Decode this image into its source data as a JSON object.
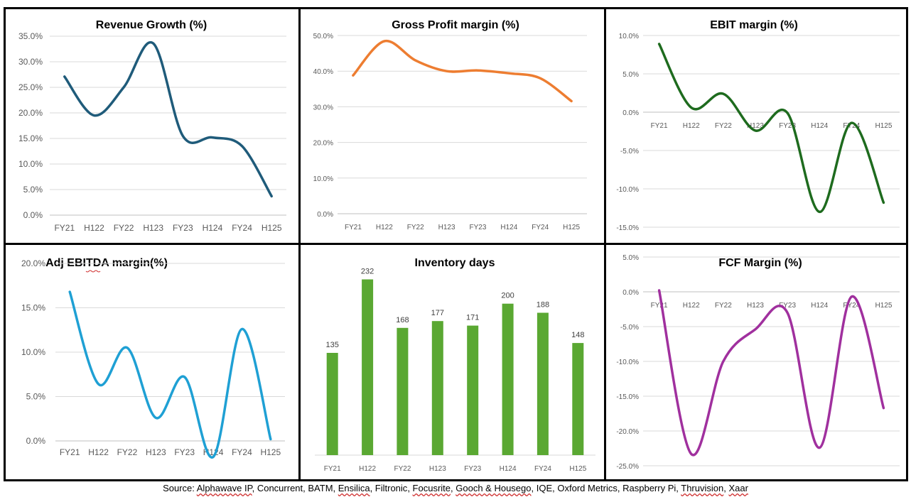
{
  "source": {
    "prefix": "Source: ",
    "items": [
      "Alphawave IP",
      "Concurrent",
      "BATM",
      "Ensilica",
      "Filtronic",
      "Focusrite",
      "Gooch & Housego",
      "IQE",
      "Oxford Metrics",
      "Raspberry Pi",
      "Thruvision",
      "Xaar"
    ],
    "underlined": [
      true,
      false,
      false,
      true,
      false,
      true,
      true,
      false,
      false,
      false,
      true,
      true
    ]
  },
  "chart_data": [
    {
      "id": "revenue",
      "type": "line",
      "title": "Revenue Growth (%)",
      "categories": [
        "FY21",
        "H122",
        "FY22",
        "H123",
        "FY23",
        "H124",
        "FY24",
        "H125"
      ],
      "values": [
        27.1,
        19.5,
        25.0,
        33.6,
        15.5,
        15.2,
        13.5,
        3.7
      ],
      "ylim": [
        0,
        35
      ],
      "yticks": [
        0,
        5,
        10,
        15,
        20,
        25,
        30,
        35
      ],
      "tick_format": "pct1",
      "color": "#1f5b7a",
      "xlabel": "",
      "ylabel": ""
    },
    {
      "id": "gross",
      "type": "line",
      "title": "Gross Profit margin (%)",
      "categories": [
        "FY21",
        "H122",
        "FY22",
        "H123",
        "FY23",
        "H124",
        "FY24",
        "H125"
      ],
      "values": [
        38.8,
        48.4,
        43.0,
        40.0,
        40.2,
        39.4,
        38.0,
        31.6
      ],
      "ylim": [
        0,
        50
      ],
      "yticks": [
        0,
        10,
        20,
        30,
        40,
        50
      ],
      "tick_format": "pct1",
      "color": "#ed7d31",
      "xlabel": "",
      "ylabel": ""
    },
    {
      "id": "ebit",
      "type": "line",
      "title": "EBIT margin (%)",
      "categories": [
        "FY21",
        "H122",
        "FY22",
        "H123",
        "FY23",
        "H124",
        "FY24",
        "H125"
      ],
      "values": [
        8.9,
        0.6,
        2.4,
        -2.4,
        -0.1,
        -13.0,
        -1.4,
        -11.8
      ],
      "ylim": [
        -15,
        10
      ],
      "yticks": [
        -15,
        -10,
        -5,
        0,
        5,
        10
      ],
      "tick_format": "pct1",
      "color": "#1e6b1e",
      "xlabel": "",
      "ylabel": ""
    },
    {
      "id": "ebitda",
      "type": "line",
      "title": "Adj EBITDA margin(%)",
      "categories": [
        "FY21",
        "H122",
        "FY22",
        "H123",
        "FY23",
        "H124",
        "FY24",
        "H125"
      ],
      "values": [
        16.8,
        6.4,
        10.5,
        2.6,
        7.2,
        -1.8,
        12.6,
        0.2
      ],
      "ylim": [
        0,
        20
      ],
      "yticks": [
        0,
        5,
        10,
        15,
        20
      ],
      "tick_format": "pct1",
      "color": "#1fa0d4",
      "xlabel": "",
      "ylabel": ""
    },
    {
      "id": "inventory",
      "type": "bar",
      "title": "Inventory days",
      "categories": [
        "FY21",
        "H122",
        "FY22",
        "H123",
        "FY23",
        "H124",
        "FY24",
        "H125"
      ],
      "values": [
        135,
        232,
        168,
        177,
        171,
        200,
        188,
        148
      ],
      "ylim": [
        0,
        240
      ],
      "color": "#5aa832",
      "xlabel": "",
      "ylabel": ""
    },
    {
      "id": "fcf",
      "type": "line",
      "title": "FCF Margin  (%)",
      "categories": [
        "FY21",
        "H122",
        "FY22",
        "H123",
        "FY23",
        "H124",
        "FY24",
        "H125"
      ],
      "values": [
        0.2,
        -23.3,
        -10.0,
        -5.4,
        -3.0,
        -22.4,
        -0.7,
        -16.7
      ],
      "ylim": [
        -25,
        5
      ],
      "yticks": [
        -25,
        -20,
        -15,
        -10,
        -5,
        0,
        5
      ],
      "tick_format": "pct1",
      "color": "#a0309e",
      "xlabel": "",
      "ylabel": ""
    }
  ]
}
